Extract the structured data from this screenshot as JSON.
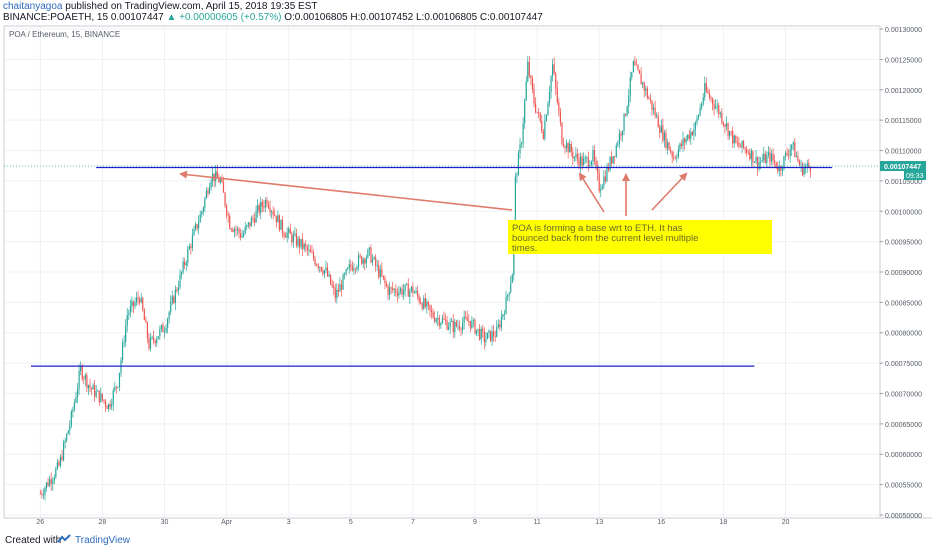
{
  "header": {
    "author": "chaitanyagoa",
    "published_text": " published on TradingView.com, April 15, 2018 19:35 EST",
    "symbol": "BINANCE:POAETH, 15",
    "last_price": "0.00107447",
    "change": "▲ +0.00000605 (+0.57%)",
    "ohlc": "O:0.00106805 H:0.00107452 L:0.00106805 C:0.00107447"
  },
  "chart_data": {
    "type": "candlestick",
    "title": "POA / Ethereum, 15, BINANCE",
    "x_ticks": [
      "26",
      "28",
      "30",
      "Apr",
      "3",
      "5",
      "7",
      "9",
      "11",
      "13",
      "16",
      "18",
      "20"
    ],
    "y_ticks": [
      "0.00130000",
      "0.00125000",
      "0.00120000",
      "0.00115000",
      "0.00110000",
      "0.00105000",
      "0.00100000",
      "0.00095000",
      "0.00090000",
      "0.00085000",
      "0.00080000",
      "0.00075000",
      "0.00070000",
      "0.00065000",
      "0.00060000",
      "0.00055000",
      "0.00050000"
    ],
    "ylim": [
      0.000495,
      0.001305
    ],
    "price_curve": [
      [
        0,
        0.000535
      ],
      [
        0.6,
        0.00058
      ],
      [
        1.0,
        0.00066
      ],
      [
        1.3,
        0.00074
      ],
      [
        1.6,
        0.00071
      ],
      [
        2.2,
        0.00068
      ],
      [
        2.5,
        0.00072
      ],
      [
        2.8,
        0.00083
      ],
      [
        3.2,
        0.00086
      ],
      [
        3.5,
        0.00078
      ],
      [
        4.0,
        0.00081
      ],
      [
        4.5,
        0.00089
      ],
      [
        4.8,
        0.00094
      ],
      [
        5.2,
        0.001
      ],
      [
        5.5,
        0.00106
      ],
      [
        5.8,
        0.00105
      ],
      [
        6.1,
        0.00098
      ],
      [
        6.5,
        0.00096
      ],
      [
        7.0,
        0.001
      ],
      [
        7.3,
        0.00102
      ],
      [
        7.8,
        0.00097
      ],
      [
        8.5,
        0.00094
      ],
      [
        9.2,
        0.0009
      ],
      [
        9.5,
        0.00086
      ],
      [
        10.0,
        0.00091
      ],
      [
        10.6,
        0.00093
      ],
      [
        11.2,
        0.00087
      ],
      [
        12.0,
        0.00087
      ],
      [
        12.6,
        0.00083
      ],
      [
        13.3,
        0.00081
      ],
      [
        13.8,
        0.00082
      ],
      [
        14.3,
        0.00079
      ],
      [
        14.7,
        0.0008
      ],
      [
        15.0,
        0.00085
      ],
      [
        15.2,
        0.0009
      ],
      [
        15.3,
        0.00105
      ],
      [
        15.5,
        0.00112
      ],
      [
        15.7,
        0.00124
      ],
      [
        15.9,
        0.00118
      ],
      [
        16.2,
        0.00113
      ],
      [
        16.5,
        0.00124
      ],
      [
        16.8,
        0.00112
      ],
      [
        17.2,
        0.00109
      ],
      [
        17.5,
        0.00108
      ],
      [
        17.8,
        0.00109
      ],
      [
        18.0,
        0.00104
      ],
      [
        18.2,
        0.00106
      ],
      [
        18.5,
        0.0011
      ],
      [
        18.8,
        0.00115
      ],
      [
        19.1,
        0.00124
      ],
      [
        19.4,
        0.00121
      ],
      [
        19.8,
        0.00116
      ],
      [
        20.1,
        0.00112
      ],
      [
        20.4,
        0.00109
      ],
      [
        20.8,
        0.00112
      ],
      [
        21.1,
        0.00114
      ],
      [
        21.4,
        0.0012
      ],
      [
        21.8,
        0.00117
      ],
      [
        22.1,
        0.00114
      ],
      [
        22.4,
        0.00111
      ],
      [
        22.8,
        0.0011
      ],
      [
        23.1,
        0.00108
      ],
      [
        23.5,
        0.00109
      ],
      [
        23.8,
        0.00107
      ],
      [
        24.2,
        0.00111
      ],
      [
        24.5,
        0.00107
      ],
      [
        24.8,
        0.001074
      ]
    ],
    "last_price_label": "0.00107447",
    "countdown": "09:33",
    "levels": [
      {
        "name": "resistance",
        "value": 0.001072,
        "x_from": 1.8,
        "x_to": 25.5
      },
      {
        "name": "support",
        "value": 0.000745,
        "x_from": -0.3,
        "x_to": 23.0
      }
    ],
    "annotation": "POA is forming a base wrt to ETH. It has bounced back from the current level multiple times.",
    "colors": {
      "up": "#26a69a",
      "down": "#ef5350",
      "level_line": "#1a22c8",
      "arrow": "#e07a6a",
      "note_bg": "#ffff00"
    }
  },
  "footer": {
    "created": "Created with",
    "brand": "TradingView"
  }
}
